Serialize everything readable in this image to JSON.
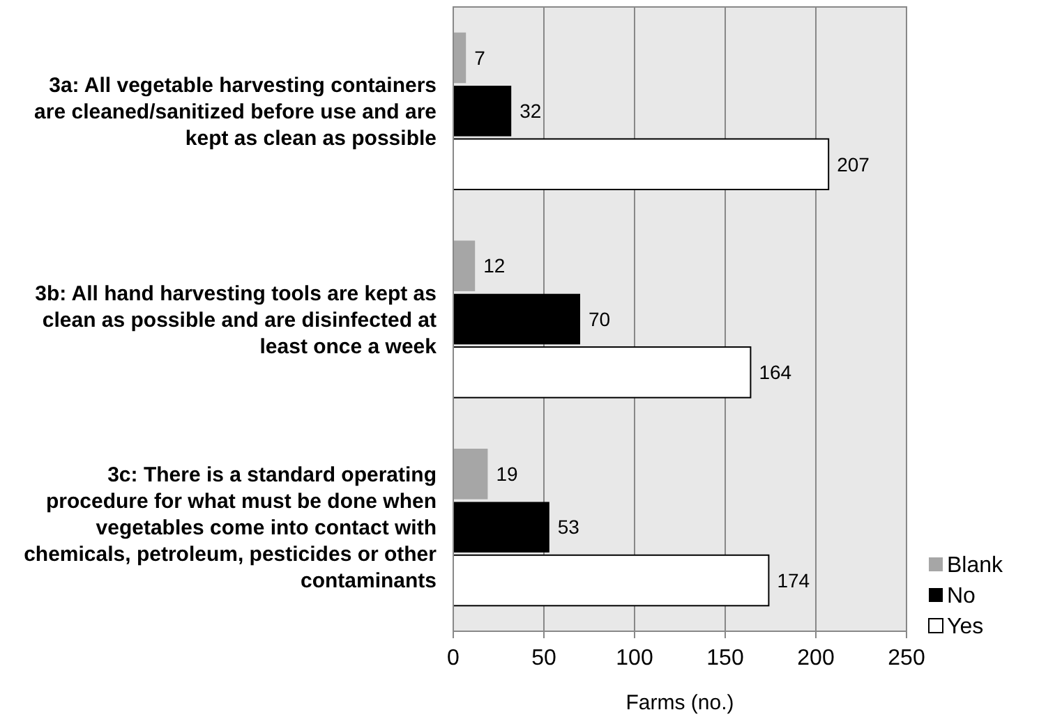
{
  "chart_data": {
    "type": "bar",
    "orientation": "horizontal",
    "xlabel": "Farms (no.)",
    "categories": [
      "3a: All vegetable harvesting containers are cleaned/sanitized before use and are kept as clean as possible",
      "3b: All hand harvesting tools are kept as clean as possible and are disinfected at least once a week",
      "3c: There is a standard operating procedure for what must be done when vegetables come into contact with chemicals, petroleum, pesticides or other contaminants"
    ],
    "series": [
      {
        "name": "Blank",
        "color": "#a6a6a6",
        "values": [
          7,
          12,
          19
        ]
      },
      {
        "name": "No",
        "color": "#000000",
        "values": [
          32,
          70,
          53
        ]
      },
      {
        "name": "Yes",
        "color": "#ffffff",
        "values": [
          207,
          164,
          174
        ]
      }
    ],
    "xlim": [
      0,
      250
    ],
    "xticks": [
      0,
      50,
      100,
      150,
      200,
      250
    ],
    "grid": "x",
    "data_labels": true,
    "legend": "right"
  }
}
